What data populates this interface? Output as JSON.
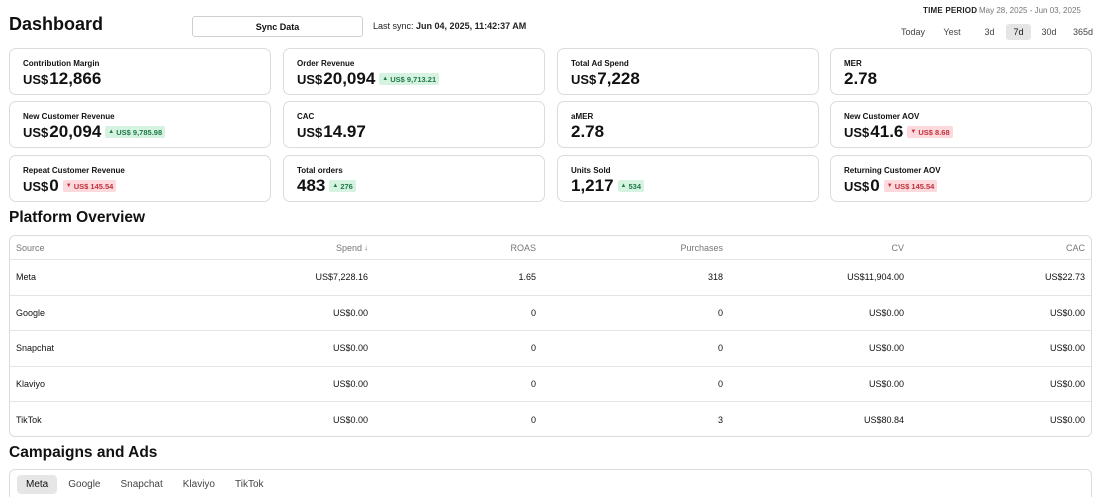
{
  "header": {
    "title": "Dashboard",
    "sync_button": "Sync Data",
    "last_sync_label": "Last sync:",
    "last_sync_value": "Jun 04, 2025, 11:42:37 AM",
    "time_period_label": "TIME PERIOD",
    "time_period_range": "May 28, 2025 - Jun 03, 2025"
  },
  "period_tabs": [
    {
      "label": "Today",
      "active": false
    },
    {
      "label": "Yest",
      "active": false
    },
    {
      "label": "3d",
      "active": false
    },
    {
      "label": "7d",
      "active": true
    },
    {
      "label": "30d",
      "active": false
    },
    {
      "label": "365d",
      "active": false
    }
  ],
  "metrics": [
    {
      "label": "Contribution Margin",
      "currency": "US$",
      "value": "12,866",
      "badge": null
    },
    {
      "label": "Order Revenue",
      "currency": "US$",
      "value": "20,094",
      "badge": {
        "text": "US$ 9,713.21",
        "dir": "up"
      }
    },
    {
      "label": "Total Ad Spend",
      "currency": "US$",
      "value": "7,228",
      "badge": null
    },
    {
      "label": "MER",
      "currency": "",
      "value": "2.78",
      "badge": null
    },
    {
      "label": "New Customer Revenue",
      "currency": "US$",
      "value": "20,094",
      "badge": {
        "text": "US$ 9,785.98",
        "dir": "up"
      }
    },
    {
      "label": "CAC",
      "currency": "US$",
      "value": "14.97",
      "badge": null
    },
    {
      "label": "aMER",
      "currency": "",
      "value": "2.78",
      "badge": null
    },
    {
      "label": "New Customer AOV",
      "currency": "US$",
      "value": "41.6",
      "badge": {
        "text": "US$ 8.68",
        "dir": "down"
      }
    },
    {
      "label": "Repeat Customer Revenue",
      "currency": "US$",
      "value": "0",
      "badge": {
        "text": "US$ 145.54",
        "dir": "down"
      }
    },
    {
      "label": "Total orders",
      "currency": "",
      "value": "483",
      "badge": {
        "text": "276",
        "dir": "up"
      }
    },
    {
      "label": "Units Sold",
      "currency": "",
      "value": "1,217",
      "badge": {
        "text": "534",
        "dir": "up"
      }
    },
    {
      "label": "Returning Customer AOV",
      "currency": "US$",
      "value": "0",
      "badge": {
        "text": "US$ 145.54",
        "dir": "down"
      }
    }
  ],
  "platform_overview": {
    "title": "Platform Overview",
    "columns": [
      "Source",
      "Spend",
      "ROAS",
      "Purchases",
      "CV",
      "CAC"
    ],
    "sort_icon": "arrow-down-icon",
    "rows": [
      [
        "Meta",
        "US$7,228.16",
        "1.65",
        "318",
        "US$11,904.00",
        "US$22.73"
      ],
      [
        "Google",
        "US$0.00",
        "0",
        "0",
        "US$0.00",
        "US$0.00"
      ],
      [
        "Snapchat",
        "US$0.00",
        "0",
        "0",
        "US$0.00",
        "US$0.00"
      ],
      [
        "Klaviyo",
        "US$0.00",
        "0",
        "0",
        "US$0.00",
        "US$0.00"
      ],
      [
        "TikTok",
        "US$0.00",
        "0",
        "3",
        "US$80.84",
        "US$0.00"
      ]
    ]
  },
  "campaigns": {
    "title": "Campaigns and Ads",
    "tabs": [
      {
        "label": "Meta",
        "active": true
      },
      {
        "label": "Google",
        "active": false
      },
      {
        "label": "Snapchat",
        "active": false
      },
      {
        "label": "Klaviyo",
        "active": false
      },
      {
        "label": "TikTok",
        "active": false
      }
    ]
  },
  "colors": {
    "badge_up_bg": "#d6f3e2",
    "badge_up_text": "#1d7a46",
    "badge_down_bg": "#fbd9dc",
    "badge_down_text": "#c0313c"
  }
}
